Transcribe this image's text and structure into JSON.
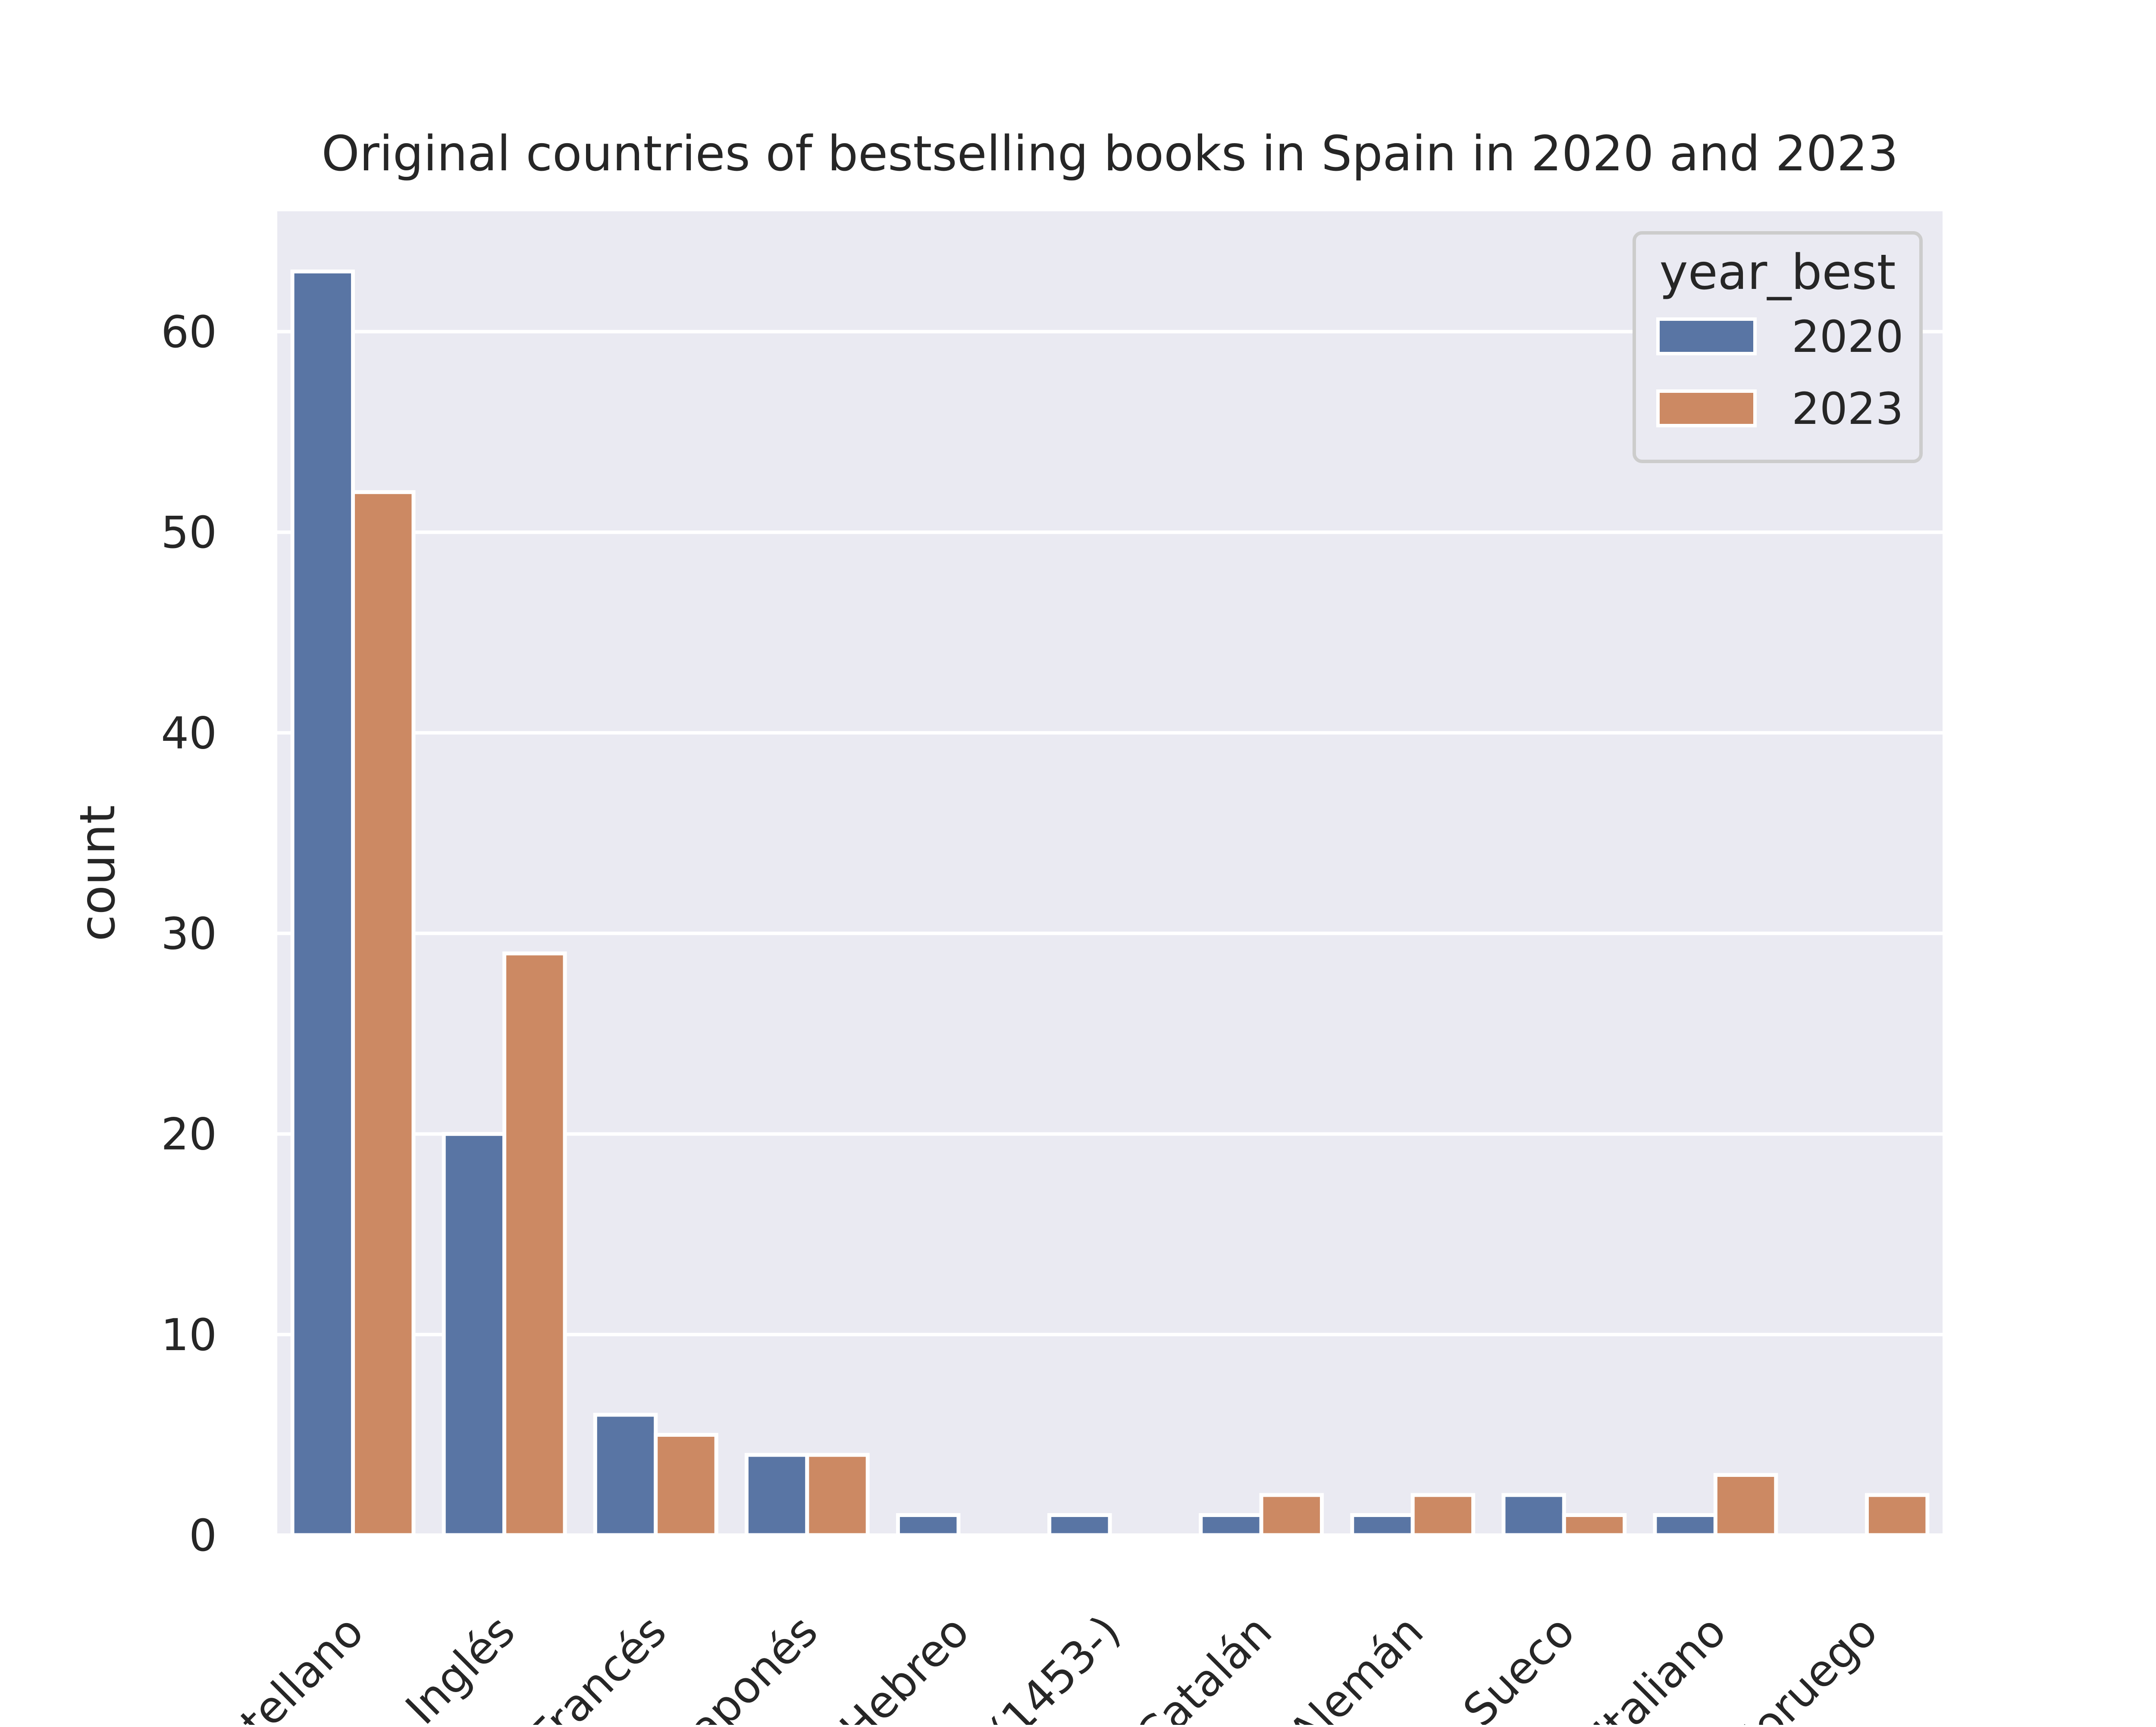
{
  "chart_data": {
    "type": "bar",
    "title": "Original countries of bestselling books in Spain in 2020 and 2023",
    "xlabel": "",
    "ylabel": "count",
    "categories": [
      "Castellano",
      "Inglés",
      "Francés",
      "Japonés",
      "Hebreo",
      "(1453-)",
      "Catalán",
      "Alemán",
      "Sueco",
      "Italiano",
      "Noruego"
    ],
    "category_labels_visible": [
      "stellano",
      "Inglés",
      "Francés",
      "Japonés",
      "Hebreo",
      "(1453-)",
      "Catalán",
      "Alemán",
      "Sueco",
      "Italiano",
      "Noruego"
    ],
    "series": [
      {
        "name": "2020",
        "color": "#5975a4",
        "values": [
          63,
          20,
          6,
          4,
          1,
          1,
          1,
          1,
          2,
          1,
          0
        ]
      },
      {
        "name": "2023",
        "color": "#cc8963",
        "values": [
          52,
          29,
          5,
          4,
          0,
          0,
          2,
          2,
          1,
          3,
          2
        ]
      }
    ],
    "ylim": [
      0,
      66
    ],
    "yticks": [
      0,
      10,
      20,
      30,
      40,
      50,
      60
    ],
    "grid": true,
    "legend": {
      "title": "year_best",
      "placement": "top-right"
    },
    "colors": {
      "plot_background": "#eaeaf2",
      "grid": "#ffffff",
      "text": "#262626"
    }
  }
}
